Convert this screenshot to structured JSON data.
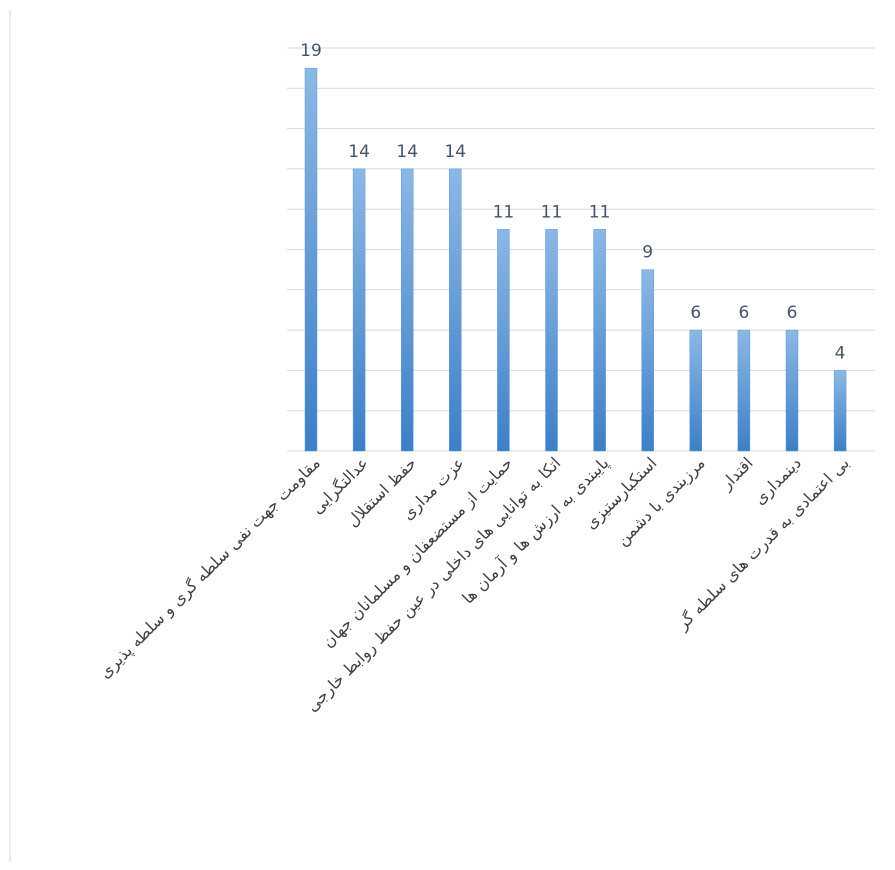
{
  "chart_data": {
    "type": "bar",
    "categories": [
      "مقاومت جهت نفی سلطه گری و سلطه پذیری",
      "عدالتگرایی",
      "حفظ استقلال",
      "عزت مداری",
      "حمایت از مستضعفان و مسلمانان جهان",
      "اتکا به توانایی های داخلی در عین حفظ روابط خارجی",
      "پایبندی به ارزش ها و آرمان ها",
      "استکبارستیزی",
      "مرزبندی با دشمن",
      "اقتدار",
      "دینمداری",
      "بی اعتمادی به قدرت های سلطه گر"
    ],
    "values": [
      19,
      14,
      14,
      14,
      11,
      11,
      11,
      9,
      6,
      6,
      6,
      4
    ],
    "color": "#5b9bd5",
    "ylim": [
      0,
      20
    ],
    "yticks": [
      0,
      2,
      4,
      6,
      8,
      10,
      12,
      14,
      16,
      18,
      20
    ],
    "grid": true
  }
}
